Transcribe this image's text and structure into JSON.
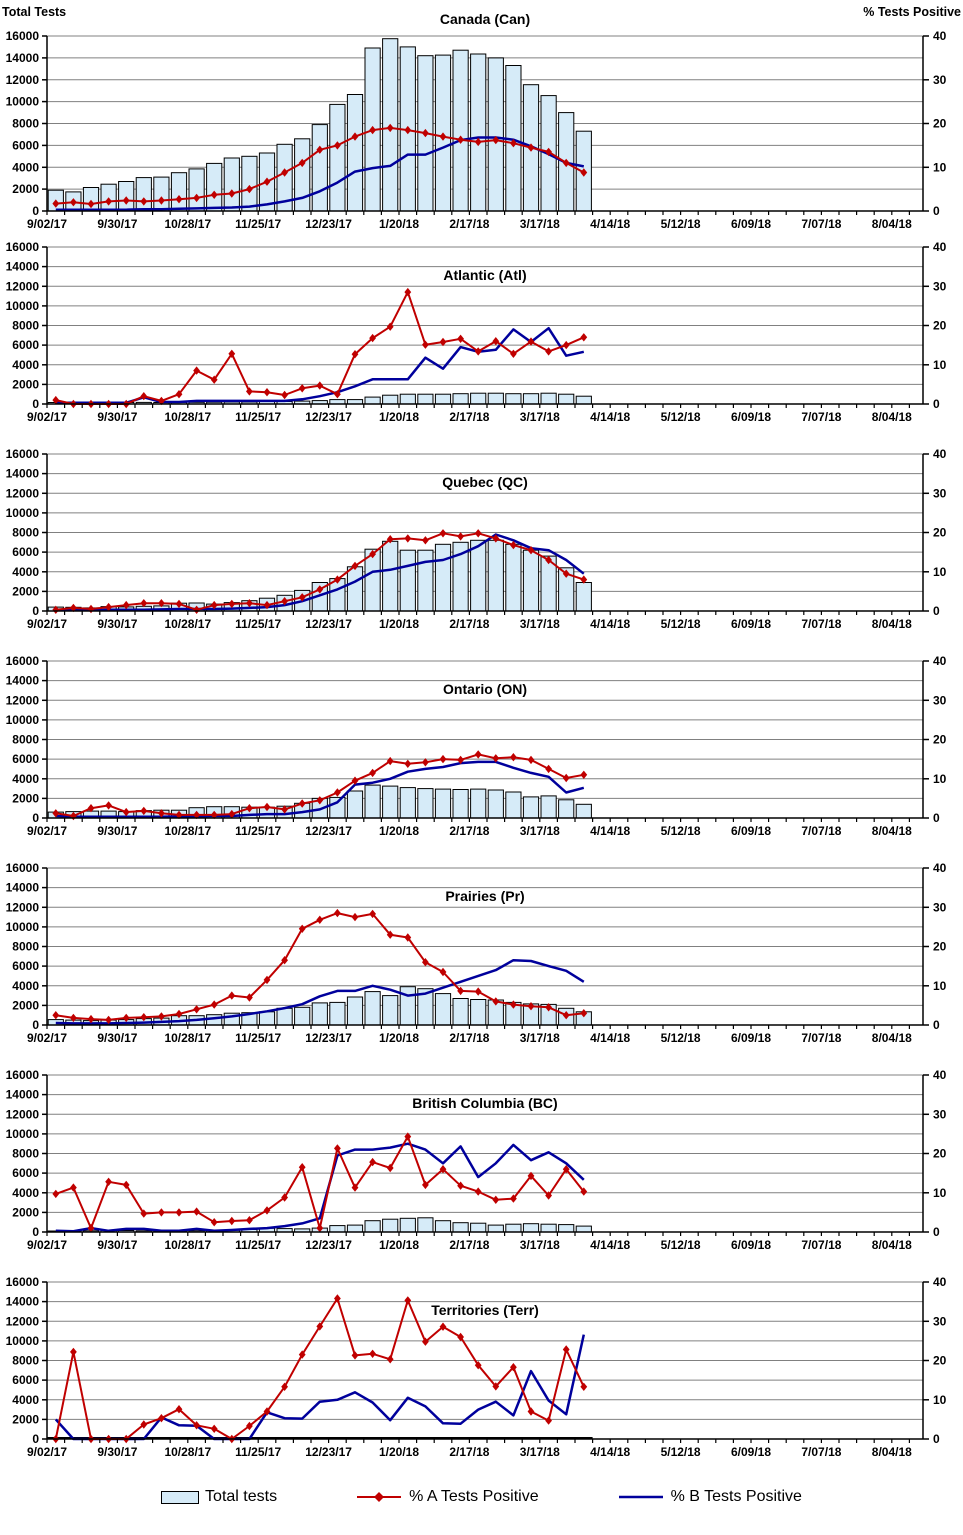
{
  "axes": {
    "left_title": "Total Tests",
    "right_title": "% Tests Positive",
    "left_axis": {
      "min": 0,
      "max": 16000,
      "step": 2000
    },
    "right_axis": {
      "min": 0,
      "max": 40,
      "step": 10
    },
    "x_labels": [
      "9/02/17",
      "9/30/17",
      "10/28/17",
      "11/25/17",
      "12/23/17",
      "1/20/18",
      "2/17/18",
      "3/17/18",
      "4/14/18",
      "5/12/18",
      "6/09/18",
      "7/07/18",
      "8/04/18"
    ]
  },
  "legend": {
    "total_tests": "Total tests",
    "pct_a": "% A Tests Positive",
    "pct_b": "% B Tests Positive"
  },
  "colors": {
    "bar_fill": "#D6EBF8",
    "bar_border": "#000000",
    "a_line": "#C00000",
    "b_line": "#00009C",
    "grid": "#808080",
    "axis": "#000000"
  },
  "chart_data": {
    "type": "bar",
    "note": "multi-panel combo: weekly Total tests bars (left axis) with % A and % B positive lines (right axis)",
    "categories": [
      "9/02/17",
      "9/09/17",
      "9/16/17",
      "9/23/17",
      "9/30/17",
      "10/07/17",
      "10/14/17",
      "10/21/17",
      "10/28/17",
      "11/04/17",
      "11/11/17",
      "11/18/17",
      "11/25/17",
      "12/02/17",
      "12/09/17",
      "12/16/17",
      "12/23/17",
      "12/30/17",
      "1/06/18",
      "1/13/18",
      "1/20/18",
      "1/27/18",
      "2/03/18",
      "2/10/18",
      "2/17/18",
      "2/24/18",
      "3/03/18",
      "3/10/18",
      "3/17/18",
      "3/24/18",
      "3/31/18"
    ],
    "left_axis": {
      "title": "Total Tests",
      "min": 0,
      "max": 16000,
      "step": 2000
    },
    "right_axis": {
      "title": "% Tests Positive",
      "min": 0,
      "max": 40,
      "step": 10
    },
    "series_types": {
      "total_tests": "bar",
      "pct_a": "line+diamond-markers",
      "pct_b": "line"
    },
    "panels": [
      {
        "title": "Canada (Can)",
        "total_tests": [
          1900,
          1750,
          2150,
          2450,
          2700,
          3050,
          3100,
          3500,
          3850,
          4350,
          4850,
          5000,
          5300,
          6100,
          6600,
          7900,
          9750,
          10650,
          14900,
          15750,
          15000,
          14200,
          14250,
          14700,
          14350,
          14000,
          13300,
          11550,
          10550,
          9000,
          7300
        ],
        "pct_a": [
          1.7,
          2.0,
          1.6,
          2.2,
          2.4,
          2.2,
          2.4,
          2.7,
          3.0,
          3.7,
          4.0,
          5.0,
          6.7,
          8.8,
          11.0,
          14.0,
          15.0,
          17.0,
          18.5,
          19.0,
          18.5,
          17.8,
          17.0,
          16.3,
          15.8,
          16.2,
          15.5,
          14.5,
          13.5,
          11.0,
          8.8
        ],
        "pct_b": [
          0.3,
          0.3,
          0.3,
          0.3,
          0.3,
          0.4,
          0.4,
          0.5,
          0.6,
          0.7,
          0.8,
          1.0,
          1.5,
          2.2,
          3.0,
          4.5,
          6.5,
          9.0,
          9.8,
          10.3,
          12.9,
          12.9,
          14.5,
          16.2,
          16.8,
          16.8,
          16.3,
          14.8,
          13.0,
          11.0,
          10.2
        ]
      },
      {
        "title": "Atlantic (Atl)",
        "total_tests": [
          150,
          120,
          130,
          140,
          150,
          160,
          150,
          160,
          170,
          180,
          200,
          200,
          250,
          250,
          300,
          350,
          450,
          450,
          700,
          900,
          1000,
          1000,
          1000,
          1050,
          1100,
          1100,
          1050,
          1050,
          1100,
          1000,
          800
        ],
        "pct_a": [
          1.0,
          0,
          0,
          0,
          0,
          2.0,
          0.8,
          2.5,
          8.5,
          6.2,
          12.8,
          3.2,
          3.0,
          2.3,
          4.0,
          4.7,
          2.5,
          12.7,
          16.8,
          19.7,
          28.5,
          15.1,
          15.8,
          16.6,
          13.4,
          16.0,
          12.8,
          15.9,
          13.4,
          15.0,
          17.0
        ],
        "pct_b": [
          0.3,
          0.3,
          0.3,
          0.3,
          0.3,
          1.7,
          0.5,
          0.5,
          0.8,
          0.8,
          0.8,
          0.8,
          0.8,
          0.8,
          1.2,
          2.0,
          3.0,
          4.5,
          6.3,
          6.3,
          6.3,
          11.8,
          9.0,
          14.5,
          13.3,
          13.8,
          19.0,
          15.8,
          19.3,
          12.3,
          13.3
        ]
      },
      {
        "title": "Quebec (QC)",
        "total_tests": [
          400,
          380,
          320,
          450,
          420,
          480,
          520,
          800,
          820,
          700,
          860,
          1050,
          1300,
          1600,
          2100,
          2900,
          3300,
          4500,
          6300,
          7100,
          6200,
          6200,
          6800,
          7000,
          7200,
          7200,
          6800,
          6200,
          5600,
          4400,
          2900
        ],
        "pct_a": [
          0.3,
          0.8,
          0.5,
          1.0,
          1.5,
          2.0,
          2.0,
          1.8,
          0.3,
          1.5,
          1.8,
          2.0,
          1.5,
          2.5,
          3.5,
          5.5,
          8.0,
          11.5,
          14.5,
          18.3,
          18.5,
          18.0,
          19.8,
          19.0,
          19.8,
          18.5,
          16.8,
          15.5,
          13.0,
          9.5,
          8.0
        ],
        "pct_b": [
          0.2,
          0.2,
          0.2,
          0.3,
          0.3,
          0.3,
          0.4,
          0.5,
          0.5,
          0.5,
          0.6,
          0.8,
          1.0,
          1.5,
          2.5,
          4.0,
          5.5,
          7.5,
          10.0,
          10.5,
          11.5,
          12.5,
          13.0,
          14.5,
          16.5,
          19.5,
          18.0,
          16.0,
          15.5,
          13.0,
          9.5
        ]
      },
      {
        "title": "Ontario (ON)",
        "total_tests": [
          600,
          650,
          700,
          700,
          650,
          750,
          800,
          800,
          1050,
          1150,
          1150,
          1100,
          1100,
          1200,
          1500,
          2000,
          2100,
          2750,
          3350,
          3250,
          3100,
          3000,
          2950,
          2900,
          2950,
          2850,
          2650,
          2150,
          2250,
          1850,
          1400
        ],
        "pct_a": [
          1.2,
          0.5,
          2.5,
          3.2,
          1.5,
          1.8,
          1.2,
          0.8,
          0.8,
          0.8,
          1.0,
          2.5,
          2.8,
          2.2,
          3.7,
          4.5,
          6.5,
          9.5,
          11.5,
          14.5,
          13.8,
          14.2,
          15.0,
          14.8,
          16.2,
          15.2,
          15.5,
          14.8,
          12.5,
          10.2,
          11.0
        ],
        "pct_b": [
          0.5,
          0.3,
          0.3,
          0.3,
          0.3,
          0.3,
          0.3,
          0.4,
          0.4,
          0.5,
          0.5,
          0.8,
          1.0,
          1.0,
          1.5,
          2.2,
          4.0,
          8.5,
          9.0,
          10.0,
          11.8,
          12.5,
          13.0,
          14.0,
          14.3,
          14.3,
          12.8,
          11.5,
          10.5,
          6.5,
          7.7
        ]
      },
      {
        "title": "Prairies (Pr)",
        "total_tests": [
          550,
          500,
          450,
          500,
          550,
          650,
          700,
          950,
          950,
          1050,
          1200,
          1250,
          1350,
          1700,
          1800,
          2250,
          2300,
          2850,
          3400,
          3000,
          3900,
          3700,
          3200,
          2700,
          2600,
          2550,
          2300,
          2150,
          2100,
          1700,
          1350
        ],
        "pct_a": [
          2.5,
          1.8,
          1.5,
          1.3,
          1.8,
          2.0,
          2.2,
          2.8,
          4.0,
          5.2,
          7.5,
          7.0,
          11.5,
          16.5,
          24.5,
          26.8,
          28.5,
          27.5,
          28.3,
          23.0,
          22.3,
          16.0,
          13.5,
          8.7,
          8.5,
          6.0,
          5.2,
          4.8,
          4.5,
          2.5,
          3.0
        ],
        "pct_b": [
          0.5,
          0.4,
          0.4,
          0.4,
          0.5,
          0.6,
          0.8,
          1.0,
          1.3,
          1.7,
          2.2,
          2.8,
          3.5,
          4.3,
          5.3,
          7.3,
          8.7,
          8.7,
          10.0,
          9.0,
          7.5,
          8.0,
          9.5,
          11.0,
          12.5,
          14.0,
          16.5,
          16.3,
          15.0,
          13.8,
          11.0
        ]
      },
      {
        "title": "British Columbia (BC)",
        "total_tests": [
          100,
          80,
          120,
          150,
          150,
          120,
          100,
          100,
          120,
          150,
          180,
          250,
          380,
          350,
          320,
          400,
          650,
          700,
          1150,
          1300,
          1400,
          1450,
          1150,
          950,
          900,
          700,
          800,
          850,
          800,
          750,
          600
        ],
        "pct_a": [
          9.7,
          11.3,
          1.0,
          12.8,
          12.0,
          4.7,
          5.0,
          5.0,
          5.2,
          2.5,
          2.8,
          3.0,
          5.5,
          8.8,
          16.5,
          1.0,
          21.3,
          11.3,
          17.8,
          16.3,
          24.3,
          12.0,
          16.0,
          11.8,
          10.3,
          8.2,
          8.5,
          14.3,
          9.3,
          16.0,
          10.3
        ],
        "pct_b": [
          0.3,
          0.2,
          1.0,
          0.3,
          0.8,
          0.8,
          0.3,
          0.3,
          0.8,
          0.3,
          0.5,
          0.8,
          1.0,
          1.5,
          2.2,
          3.5,
          19.5,
          21.0,
          21.0,
          21.5,
          22.5,
          21.0,
          17.5,
          21.8,
          14.0,
          17.5,
          22.2,
          18.3,
          20.3,
          17.5,
          13.3
        ]
      },
      {
        "title": "Territories (Terr)",
        "total_tests": [
          0,
          0,
          0,
          0,
          0,
          0,
          0,
          0,
          0,
          0,
          0,
          0,
          0,
          0,
          0,
          0,
          0,
          0,
          0,
          0,
          0,
          0,
          0,
          0,
          0,
          0,
          0,
          0,
          0,
          0,
          0
        ],
        "pct_a": [
          0,
          22.2,
          0,
          0,
          0,
          3.7,
          5.3,
          7.6,
          3.5,
          2.6,
          0,
          3.3,
          7.0,
          13.3,
          21.5,
          28.7,
          35.8,
          21.3,
          21.7,
          20.3,
          35.3,
          24.8,
          28.6,
          26.0,
          18.8,
          13.4,
          18.3,
          7.0,
          4.7,
          22.8,
          13.3
        ],
        "pct_b": [
          5.0,
          0,
          0,
          0,
          0,
          0,
          5.5,
          3.5,
          3.4,
          0,
          0,
          0,
          6.8,
          5.3,
          5.2,
          9.5,
          10.0,
          11.9,
          9.3,
          4.8,
          10.5,
          8.3,
          4.0,
          3.9,
          7.5,
          9.5,
          6.0,
          17.3,
          9.8,
          6.3,
          26.6
        ]
      }
    ]
  }
}
